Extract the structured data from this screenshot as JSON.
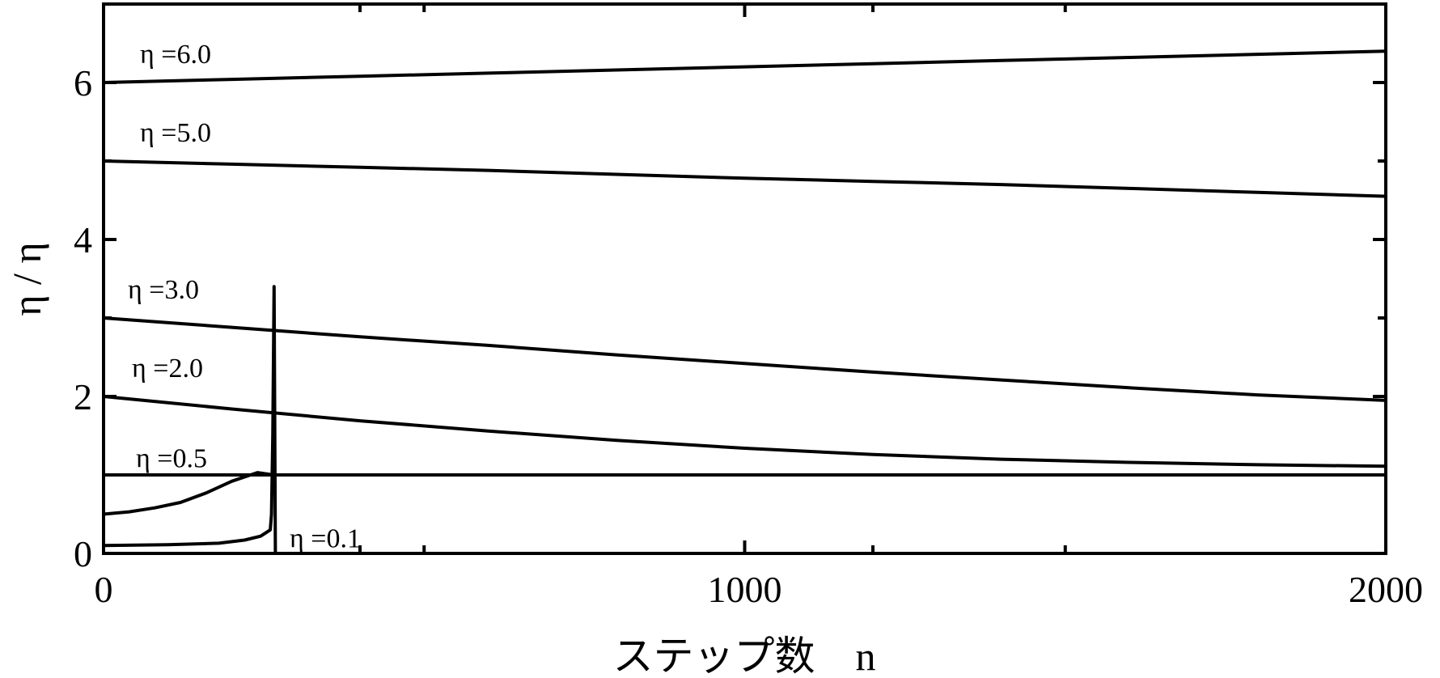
{
  "chart_data": {
    "type": "line",
    "title": "",
    "xlabel": "ステップ数　n",
    "ylabel": "η / η",
    "xlim": [
      0,
      2000
    ],
    "ylim": [
      0,
      7
    ],
    "x_ticks": [
      0,
      1000,
      2000
    ],
    "y_ticks": [
      0,
      2,
      4,
      6
    ],
    "grid": false,
    "legend": "none",
    "reference_line": {
      "y": 1.0
    },
    "colors": {
      "line": "#000000",
      "axes": "#000000",
      "background": "#ffffff"
    },
    "series": [
      {
        "name": "η =6.0",
        "x": [
          0,
          200,
          400,
          600,
          800,
          1000,
          1200,
          1400,
          1600,
          1800,
          2000
        ],
        "y": [
          6.0,
          6.04,
          6.08,
          6.12,
          6.16,
          6.2,
          6.24,
          6.28,
          6.32,
          6.36,
          6.4
        ]
      },
      {
        "name": "η =5.0",
        "x": [
          0,
          200,
          400,
          600,
          800,
          1000,
          1200,
          1400,
          1600,
          1800,
          2000
        ],
        "y": [
          5.0,
          4.96,
          4.92,
          4.88,
          4.83,
          4.78,
          4.74,
          4.7,
          4.65,
          4.6,
          4.55
        ]
      },
      {
        "name": "η =3.0",
        "x": [
          0,
          200,
          400,
          600,
          800,
          1000,
          1200,
          1400,
          1600,
          1800,
          2000
        ],
        "y": [
          3.0,
          2.88,
          2.76,
          2.65,
          2.53,
          2.42,
          2.31,
          2.21,
          2.11,
          2.02,
          1.95
        ]
      },
      {
        "name": "η =2.0",
        "x": [
          0,
          200,
          400,
          600,
          800,
          1000,
          1200,
          1400,
          1600,
          1800,
          2000
        ],
        "y": [
          2.0,
          1.84,
          1.69,
          1.56,
          1.44,
          1.34,
          1.26,
          1.2,
          1.16,
          1.13,
          1.11
        ]
      },
      {
        "name": "η =0.5",
        "x": [
          0,
          40,
          80,
          120,
          160,
          200,
          240,
          265,
          300,
          600,
          1000,
          1500,
          2000
        ],
        "y": [
          0.5,
          0.53,
          0.58,
          0.65,
          0.77,
          0.92,
          1.03,
          1.0,
          1.0,
          1.0,
          1.0,
          1.0,
          1.0
        ]
      },
      {
        "name": "η =0.1",
        "x": [
          0,
          100,
          180,
          220,
          245,
          260,
          262,
          264,
          266,
          268
        ],
        "y": [
          0.1,
          0.11,
          0.13,
          0.17,
          0.22,
          0.3,
          0.5,
          1.5,
          3.4,
          0
        ]
      }
    ]
  }
}
